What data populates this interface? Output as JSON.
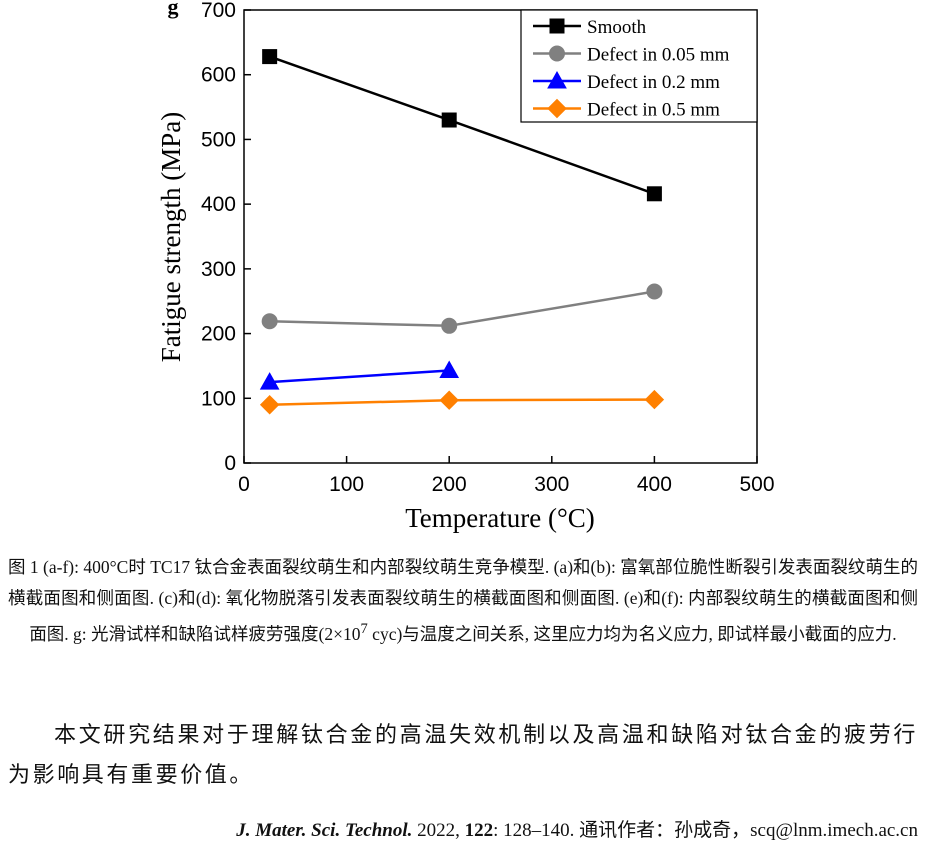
{
  "chart_data": {
    "type": "line",
    "panel_label": "g",
    "xlabel": "Temperature (°C)",
    "ylabel": "Fatigue strength (MPa)",
    "xlim": [
      0,
      500
    ],
    "xticks": [
      0,
      100,
      200,
      300,
      400,
      500
    ],
    "ylim": [
      0,
      700
    ],
    "yticks": [
      0,
      100,
      200,
      300,
      400,
      500,
      600,
      700
    ],
    "legend": "upper right",
    "series": [
      {
        "name": "Smooth",
        "color": "#000000",
        "marker": "square",
        "x": [
          25,
          200,
          400
        ],
        "values": [
          628,
          530,
          416
        ]
      },
      {
        "name": "Defect in 0.05 mm",
        "color": "#808080",
        "marker": "circle",
        "x": [
          25,
          200,
          400
        ],
        "values": [
          219,
          212,
          265
        ]
      },
      {
        "name": "Defect in 0.2 mm",
        "color": "#0000ff",
        "marker": "triangle",
        "x": [
          25,
          200
        ],
        "values": [
          125,
          143
        ]
      },
      {
        "name": "Defect in 0.5 mm",
        "color": "#ff8000",
        "marker": "diamond",
        "x": [
          25,
          200,
          400
        ],
        "values": [
          90,
          97,
          98
        ]
      }
    ]
  },
  "caption": {
    "parts": [
      "图 1 (a-f): 400°C时 TC17 钛合金表面裂纹萌生和内部裂纹萌生竞争模型. (a)和(b): 富氧部位脆性断裂引发表面裂纹萌生的横截面图和侧面图. (c)和(d): 氧化物脱落引发表面裂纹萌生的横截面图和侧面图. (e)和(f): 内部裂纹萌生的横截面图和侧面图. g: 光滑试样和缺陷试样疲劳强度(2×10",
      "7",
      " cyc)与温度之间关系, 这里应力均为名义应力, 即试样最小截面的应力."
    ]
  },
  "paragraph": "本文研究结果对于理解钛合金的高温失效机制以及高温和缺陷对钛合金的疲劳行为影响具有重要价值。",
  "reference": {
    "parts": [
      "J. Mater. Sci. Technol.",
      " 2022, ",
      "122",
      ": 128–140.  通讯作者：孙成奇，scq@lnm.imech.ac.cn"
    ]
  }
}
